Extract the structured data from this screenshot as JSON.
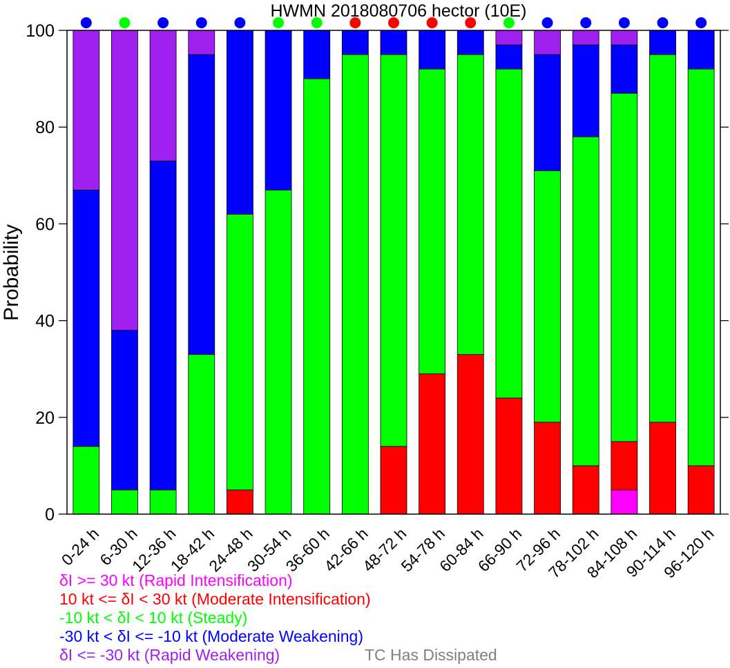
{
  "chart_data": {
    "type": "bar",
    "stacked": true,
    "title": "HWMN 2018080706 hector (10E)",
    "xlabel": "",
    "ylabel": "Probability",
    "ylim": [
      0,
      100
    ],
    "yticks": [
      0,
      20,
      40,
      60,
      80,
      100
    ],
    "grid": false,
    "categories": [
      "0-24 h",
      "6-30 h",
      "12-36 h",
      "18-42 h",
      "24-48 h",
      "30-54 h",
      "36-60 h",
      "42-66 h",
      "48-72 h",
      "54-78 h",
      "60-84 h",
      "66-90 h",
      "72-96 h",
      "78-102 h",
      "84-108 h",
      "90-114 h",
      "96-120 h"
    ],
    "series": [
      {
        "key": "ri",
        "color": "#ff00ff",
        "values": [
          0,
          0,
          0,
          0,
          0,
          0,
          0,
          0,
          0,
          0,
          0,
          0,
          0,
          0,
          5,
          0,
          0
        ]
      },
      {
        "key": "mi",
        "color": "#ff0000",
        "values": [
          0,
          0,
          0,
          0,
          5,
          0,
          0,
          0,
          14,
          29,
          33,
          24,
          19,
          10,
          10,
          19,
          10
        ]
      },
      {
        "key": "st",
        "color": "#00ff00",
        "values": [
          14,
          5,
          5,
          33,
          57,
          67,
          90,
          95,
          81,
          63,
          62,
          68,
          52,
          68,
          72,
          76,
          82
        ]
      },
      {
        "key": "mw",
        "color": "#0000ff",
        "values": [
          53,
          33,
          68,
          62,
          38,
          33,
          10,
          5,
          5,
          8,
          5,
          5,
          24,
          19,
          10,
          5,
          8
        ]
      },
      {
        "key": "rw",
        "color": "#a020f0",
        "values": [
          33,
          62,
          27,
          5,
          0,
          0,
          0,
          0,
          0,
          0,
          0,
          3,
          5,
          3,
          3,
          0,
          0
        ]
      }
    ],
    "top_markers": [
      "#0000ff",
      "#00ff00",
      "#0000ff",
      "#0000ff",
      "#0000ff",
      "#00ff00",
      "#00ff00",
      "#ff0000",
      "#ff0000",
      "#ff0000",
      "#ff0000",
      "#00ff00",
      "#0000ff",
      "#0000ff",
      "#0000ff",
      "#0000ff",
      "#0000ff"
    ],
    "legend": [
      {
        "label": "δI >= 30 kt (Rapid Intensification)",
        "color": "#ff00ff"
      },
      {
        "label": "10 kt <= δI < 30 kt (Moderate Intensification)",
        "color": "#ff0000"
      },
      {
        "label": "-10 kt < δI < 10 kt (Steady)",
        "color": "#00ff00"
      },
      {
        "label": "-30 kt < δI <= -10 kt (Moderate Weakening)",
        "color": "#0000ff"
      },
      {
        "label": "δI <= -30 kt (Rapid Weakening)",
        "color": "#a020f0"
      }
    ],
    "dissipated_label": {
      "label": "TC Has Dissipated",
      "color": "#808080"
    }
  }
}
